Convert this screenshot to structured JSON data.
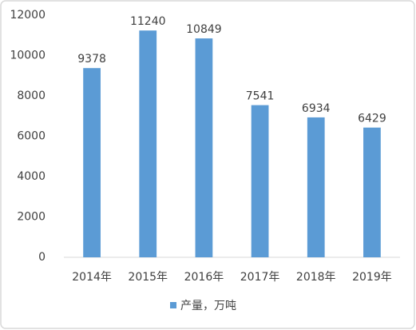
{
  "chart_data": {
    "type": "bar",
    "categories": [
      "2014年",
      "2015年",
      "2016年",
      "2017年",
      "2018年",
      "2019年"
    ],
    "series": [
      {
        "name": "产量，万吨",
        "color": "#5b9bd5",
        "values": [
          9378,
          11240,
          10849,
          7541,
          6934,
          6429
        ]
      }
    ],
    "ylim": [
      0,
      12000
    ],
    "yticks": [
      0,
      2000,
      4000,
      6000,
      8000,
      10000,
      12000
    ],
    "grid": false,
    "legend": "bottom"
  }
}
